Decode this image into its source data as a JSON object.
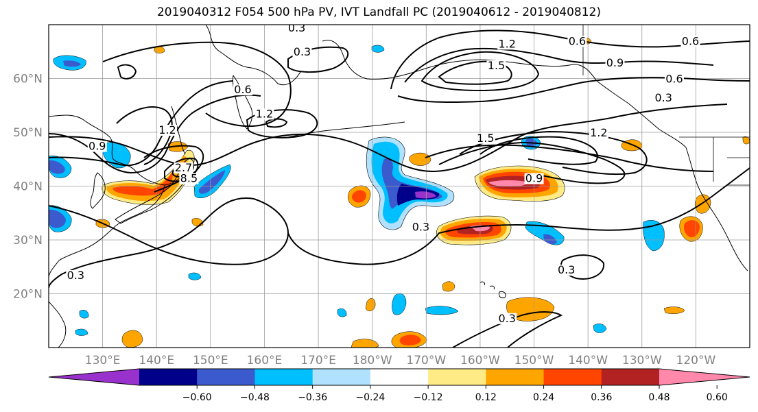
{
  "title": "2019040312 F054 500 hPa PV, IVT Landfall PC (2019040612 - 2019040812)",
  "chart_data": {
    "type": "contour map",
    "projection": "plate carree, Pacific-centered",
    "extent": {
      "lon_min": 120,
      "lon_max": 250,
      "lat_min": 10,
      "lat_max": 70
    },
    "lon_ticks": [
      "130°E",
      "140°E",
      "150°E",
      "160°E",
      "170°E",
      "180°W",
      "170°W",
      "160°W",
      "150°W",
      "140°W",
      "130°W",
      "120°W"
    ],
    "lat_ticks": [
      "20°N",
      "30°N",
      "40°N",
      "50°N",
      "60°N"
    ],
    "grid": true,
    "colorbar": {
      "orientation": "horizontal",
      "extend": "both",
      "tick_labels": [
        "−0.60",
        "−0.48",
        "−0.36",
        "−0.24",
        "−0.12",
        "0.12",
        "0.24",
        "0.36",
        "0.48",
        "0.60"
      ],
      "colors": [
        "#9932cc",
        "#00008b",
        "#3a5acd",
        "#00bfff",
        "#b0e2ff",
        "#ffffff",
        "#ffeb85",
        "#ffa500",
        "#ff4500",
        "#b22222",
        "#ff88ab"
      ]
    },
    "contour_labels": [
      {
        "text": "0.3",
        "lon": 166,
        "lat": 69
      },
      {
        "text": "0.3",
        "lon": 167,
        "lat": 64.5
      },
      {
        "text": "0.6",
        "lon": 156,
        "lat": 57.5
      },
      {
        "text": "1.2",
        "lon": 160,
        "lat": 53
      },
      {
        "text": "1.2",
        "lon": 142,
        "lat": 50
      },
      {
        "text": "0.9",
        "lon": 129,
        "lat": 47
      },
      {
        "text": "2.7",
        "lon": 145,
        "lat": 43
      },
      {
        "text": "8.5",
        "lon": 146,
        "lat": 41
      },
      {
        "text": "0.3",
        "lon": 125,
        "lat": 23
      },
      {
        "text": "1.2",
        "lon": 205,
        "lat": 66
      },
      {
        "text": "1.5",
        "lon": 203,
        "lat": 62
      },
      {
        "text": "0.6",
        "lon": 218,
        "lat": 66.5
      },
      {
        "text": "0.6",
        "lon": 239,
        "lat": 66.5
      },
      {
        "text": "0.9",
        "lon": 225,
        "lat": 62.5
      },
      {
        "text": "0.6",
        "lon": 236,
        "lat": 59.5
      },
      {
        "text": "0.3",
        "lon": 234,
        "lat": 56
      },
      {
        "text": "1.5",
        "lon": 201,
        "lat": 48.5
      },
      {
        "text": "1.2",
        "lon": 222,
        "lat": 49.5
      },
      {
        "text": "0.9",
        "lon": 210,
        "lat": 41
      },
      {
        "text": "0.3",
        "lon": 189,
        "lat": 32
      },
      {
        "text": "0.3",
        "lon": 216,
        "lat": 24
      },
      {
        "text": "0.3",
        "lon": 205,
        "lat": 15
      }
    ]
  }
}
